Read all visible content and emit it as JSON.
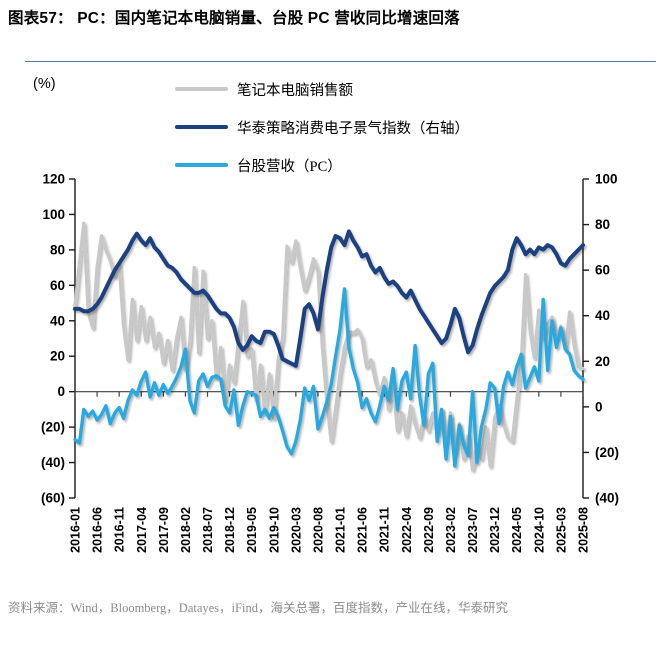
{
  "title": "图表57：  PC：国内笔记本电脑销量、台股 PC 营收同比增速回落",
  "unit_label": "(%)",
  "source": "资料来源：Wind，Bloomberg，Datayes，iFind，海关总署，百度指数，产业在线，华泰研究",
  "colors": {
    "laptop_sales": "#C8C8C8",
    "consumer_electronics_index": "#1A4080",
    "taiwan_pc_revenue": "#2AA9E0",
    "rule": "#4F7DB3",
    "axis": "#1A1A1A",
    "zero_line": "#404040",
    "source_text": "#8C8C8C"
  },
  "legend": [
    {
      "id": "laptop-sales",
      "label": "笔记本电脑销售额"
    },
    {
      "id": "consumer-electronics-index",
      "label": "华泰策略消费电子景气指数（右轴）"
    },
    {
      "id": "taiwan-pc-revenue",
      "label": "台股营收（PC）"
    }
  ],
  "chart_data": {
    "type": "line",
    "x_start": "2016-01",
    "x_end": "2025-08",
    "months_total": 116,
    "x_tick_labels": [
      "2016-01",
      "2016-06",
      "2016-11",
      "2017-04",
      "2017-09",
      "2018-02",
      "2018-07",
      "2018-12",
      "2019-05",
      "2019-10",
      "2020-03",
      "2020-08",
      "2021-01",
      "2021-06",
      "2021-11",
      "2022-04",
      "2022-09",
      "2023-02",
      "2023-07",
      "2023-12",
      "2024-05",
      "2024-10",
      "2025-03",
      "2025-08"
    ],
    "x_tick_step": 5,
    "left_axis": {
      "range": [
        -60,
        120
      ],
      "ticks": [
        120,
        100,
        80,
        60,
        40,
        20,
        0,
        -20,
        -40,
        -60
      ]
    },
    "right_axis": {
      "range": [
        -40,
        100
      ],
      "ticks": [
        100,
        80,
        60,
        40,
        20,
        0,
        -20,
        -40
      ]
    },
    "grid": false,
    "legend_position": "top",
    "series": [
      {
        "id": "laptop-sales",
        "name": "笔记本电脑销售额",
        "axis": "left",
        "color": "#C8C8C8",
        "width": 3.4,
        "values": [
          48,
          72,
          95,
          45,
          36,
          70,
          88,
          80,
          74,
          65,
          72,
          37,
          18,
          52,
          29,
          48,
          29,
          42,
          25,
          33,
          16,
          29,
          12,
          30,
          42,
          12,
          28,
          70,
          22,
          68,
          30,
          40,
          8,
          25,
          -5,
          15,
          5,
          28,
          51,
          20,
          24,
          -5,
          15,
          -12,
          10,
          -15,
          18,
          30,
          82,
          73,
          85,
          70,
          57,
          65,
          75,
          68,
          25,
          -5,
          -28,
          -10,
          10,
          25,
          34,
          33,
          35,
          30,
          14,
          18,
          6,
          -2,
          8,
          -10,
          5,
          -22,
          -12,
          -25,
          -8,
          -18,
          -26,
          -14,
          -22,
          -12,
          -24,
          -10,
          -28,
          -12,
          -35,
          -18,
          -38,
          -25,
          -44,
          -30,
          -38,
          -20,
          -42,
          -15,
          -8,
          -18,
          -26,
          -28,
          -5,
          15,
          66,
          35,
          19,
          46,
          30,
          38,
          42,
          30,
          37,
          24,
          45,
          26,
          14,
          13
        ]
      },
      {
        "id": "consumer-electronics-index",
        "name": "华泰策略消费电子景气指数（右轴）",
        "axis": "right",
        "color": "#1A4080",
        "width": 4,
        "values": [
          43,
          43,
          42,
          42,
          43,
          45,
          48,
          52,
          56,
          60,
          63,
          66,
          69,
          73,
          76,
          73,
          71,
          74,
          70,
          68,
          65,
          62,
          61,
          59,
          56,
          54,
          52,
          50,
          50,
          51,
          49,
          46,
          43,
          41,
          41,
          39,
          35,
          28,
          25,
          27,
          31,
          29,
          28,
          33,
          33,
          32,
          27,
          21,
          20,
          19,
          18,
          30,
          43,
          45,
          41,
          34,
          48,
          60,
          70,
          75,
          74,
          71,
          77,
          73,
          70,
          66,
          67,
          62,
          59,
          61,
          57,
          54,
          55,
          53,
          50,
          48,
          51,
          47,
          43,
          40,
          37,
          34,
          31,
          28,
          30,
          36,
          43,
          39,
          31,
          24,
          27,
          34,
          40,
          45,
          50,
          53,
          55,
          57,
          60,
          69,
          74,
          71,
          67,
          69,
          67,
          70,
          69,
          71,
          70,
          67,
          63,
          62,
          65,
          67,
          69,
          71
        ]
      },
      {
        "id": "taiwan-pc-revenue",
        "name": "台股营收（PC）",
        "axis": "left",
        "color": "#2AA9E0",
        "width": 3.4,
        "values": [
          -27,
          -29,
          -10,
          -14,
          -11,
          -16,
          -13,
          -8,
          -18,
          -12,
          -9,
          -15,
          -5,
          1,
          -2,
          6,
          11,
          -3,
          5,
          -2,
          4,
          -1,
          3,
          8,
          14,
          24,
          -5,
          -12,
          6,
          10,
          3,
          8,
          9,
          7,
          -8,
          -12,
          1,
          -19,
          -8,
          0,
          -1,
          -2,
          -14,
          -10,
          -15,
          -9,
          -14,
          -22,
          -31,
          -35,
          -28,
          -16,
          2,
          -5,
          3,
          -21,
          -14,
          -6,
          4,
          20,
          35,
          58,
          25,
          13,
          5,
          -9,
          -4,
          -12,
          -17,
          -8,
          3,
          -5,
          13,
          -10,
          6,
          11,
          -4,
          26,
          -2,
          -19,
          10,
          16,
          -28,
          -10,
          -38,
          -14,
          -42,
          -19,
          -30,
          -36,
          0,
          -40,
          -20,
          -10,
          5,
          2,
          -18,
          3,
          11,
          4,
          14,
          21,
          2,
          8,
          14,
          6,
          52,
          12,
          40,
          25,
          36,
          24,
          21,
          12,
          9,
          7
        ]
      }
    ]
  }
}
